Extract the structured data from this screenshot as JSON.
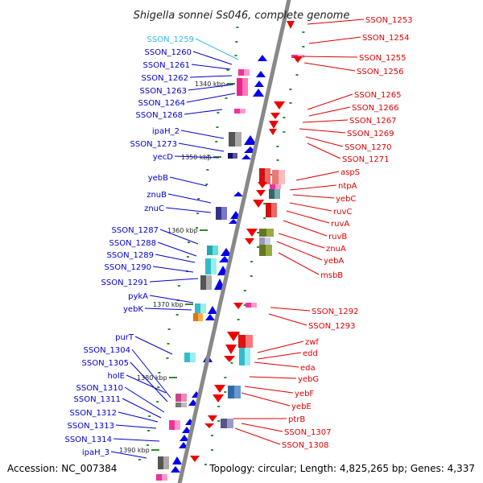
{
  "title": "Shigella sonnei Ss046, complete genome",
  "footer": {
    "accession": "Accession: NC_007384",
    "summary": "Topology: circular; Length: 4,825,265 bp; Genes: 4,337"
  },
  "colors": {
    "backbone": "#888888",
    "left_label": "#0000cc",
    "right_label": "#dd0000",
    "highlight_label": "#33bbee",
    "tick": "#2e8b2e",
    "forward_arrow": "#0000ee",
    "reverse_arrow": "#ee0000"
  },
  "kbp_marks": [
    "1340 kbp",
    "1350 kbp",
    "1360 kbp",
    "1370 kbp",
    "1380 kbp",
    "1390 kbp"
  ],
  "left_labels": [
    {
      "text": "SSON_1259",
      "highlight": true
    },
    {
      "text": "SSON_1260"
    },
    {
      "text": "SSON_1261"
    },
    {
      "text": "SSON_1262"
    },
    {
      "text": "SSON_1263"
    },
    {
      "text": "SSON_1264"
    },
    {
      "text": "SSON_1268"
    },
    {
      "text": "ipaH_2"
    },
    {
      "text": "SSON_1273"
    },
    {
      "text": "yecD"
    },
    {
      "text": "yebB"
    },
    {
      "text": "znuB"
    },
    {
      "text": "znuC"
    },
    {
      "text": "SSON_1287"
    },
    {
      "text": "SSON_1288"
    },
    {
      "text": "SSON_1289"
    },
    {
      "text": "SSON_1290"
    },
    {
      "text": "SSON_1291"
    },
    {
      "text": "pykA"
    },
    {
      "text": "yebK"
    },
    {
      "text": "purT"
    },
    {
      "text": "SSON_1304"
    },
    {
      "text": "SSON_1305"
    },
    {
      "text": "holE"
    },
    {
      "text": "SSON_1310"
    },
    {
      "text": "SSON_1311"
    },
    {
      "text": "SSON_1312"
    },
    {
      "text": "SSON_1313"
    },
    {
      "text": "SSON_1314"
    },
    {
      "text": "ipaH_3"
    }
  ],
  "right_labels": [
    {
      "text": "SSON_1253"
    },
    {
      "text": "SSON_1254"
    },
    {
      "text": "SSON_1255"
    },
    {
      "text": "SSON_1256"
    },
    {
      "text": "SSON_1265"
    },
    {
      "text": "SSON_1266"
    },
    {
      "text": "SSON_1267"
    },
    {
      "text": "SSON_1269"
    },
    {
      "text": "SSON_1270"
    },
    {
      "text": "SSON_1271"
    },
    {
      "text": "aspS"
    },
    {
      "text": "ntpA"
    },
    {
      "text": "yebC"
    },
    {
      "text": "ruvC"
    },
    {
      "text": "ruvA"
    },
    {
      "text": "ruvB"
    },
    {
      "text": "znuA"
    },
    {
      "text": "yebA"
    },
    {
      "text": "msbB"
    },
    {
      "text": "SSON_1292"
    },
    {
      "text": "SSON_1293"
    },
    {
      "text": "zwf"
    },
    {
      "text": "edd"
    },
    {
      "text": "eda"
    },
    {
      "text": "yebG"
    },
    {
      "text": "yebF"
    },
    {
      "text": "yebE"
    },
    {
      "text": "ptrB"
    },
    {
      "text": "SSON_1307"
    },
    {
      "text": "SSON_1308"
    }
  ]
}
